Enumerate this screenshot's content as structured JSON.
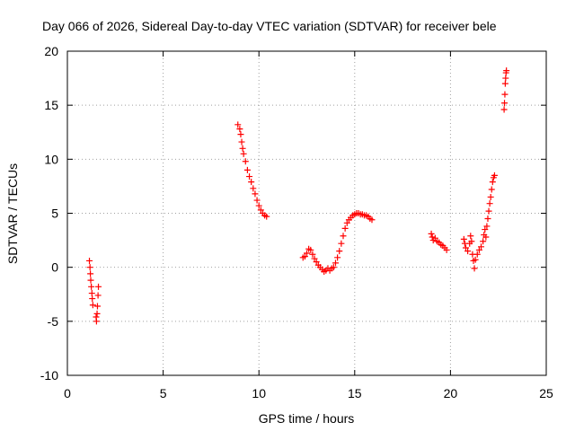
{
  "chart_data": {
    "type": "scatter",
    "title": "Day 066 of 2026, Sidereal Day-to-day VTEC variation (SDTVAR) for receiver bele",
    "xlabel": "GPS time / hours",
    "ylabel": "SDTVAR / TECUs",
    "xlim": [
      0,
      25
    ],
    "ylim": [
      -10,
      20
    ],
    "xticks": [
      0,
      5,
      10,
      15,
      20,
      25
    ],
    "yticks": [
      -10,
      -5,
      0,
      5,
      10,
      15,
      20
    ],
    "xtick_labels": [
      "0",
      "5",
      "10",
      "15",
      "20",
      "25"
    ],
    "ytick_labels": [
      "-10",
      "-5",
      "0",
      "5",
      "10",
      "15",
      "20"
    ],
    "grid": true,
    "marker": "+",
    "series": [
      {
        "name": "SDTVAR",
        "color": "#ff0000",
        "points": [
          [
            1.15,
            0.6
          ],
          [
            1.18,
            0.0
          ],
          [
            1.2,
            -0.6
          ],
          [
            1.22,
            -1.2
          ],
          [
            1.25,
            -1.8
          ],
          [
            1.28,
            -2.4
          ],
          [
            1.3,
            -2.9
          ],
          [
            1.33,
            -3.5
          ],
          [
            1.5,
            -4.6
          ],
          [
            1.52,
            -5.0
          ],
          [
            1.55,
            -4.3
          ],
          [
            1.57,
            -3.6
          ],
          [
            1.6,
            -2.6
          ],
          [
            1.62,
            -1.8
          ],
          [
            8.9,
            13.2
          ],
          [
            9.0,
            12.8
          ],
          [
            9.05,
            12.3
          ],
          [
            9.1,
            11.6
          ],
          [
            9.15,
            11.0
          ],
          [
            9.2,
            10.5
          ],
          [
            9.3,
            9.8
          ],
          [
            9.4,
            9.0
          ],
          [
            9.5,
            8.4
          ],
          [
            9.6,
            7.9
          ],
          [
            9.7,
            7.3
          ],
          [
            9.8,
            6.8
          ],
          [
            9.9,
            6.2
          ],
          [
            10.0,
            5.7
          ],
          [
            10.1,
            5.3
          ],
          [
            10.2,
            5.0
          ],
          [
            10.3,
            4.8
          ],
          [
            10.4,
            4.7
          ],
          [
            12.3,
            0.9
          ],
          [
            12.4,
            1.0
          ],
          [
            12.5,
            1.3
          ],
          [
            12.6,
            1.7
          ],
          [
            12.7,
            1.6
          ],
          [
            12.8,
            1.2
          ],
          [
            12.9,
            0.8
          ],
          [
            13.0,
            0.5
          ],
          [
            13.1,
            0.2
          ],
          [
            13.2,
            0.0
          ],
          [
            13.3,
            -0.2
          ],
          [
            13.4,
            -0.4
          ],
          [
            13.5,
            -0.3
          ],
          [
            13.6,
            -0.1
          ],
          [
            13.7,
            -0.3
          ],
          [
            13.8,
            -0.1
          ],
          [
            13.9,
            0.0
          ],
          [
            14.0,
            0.4
          ],
          [
            14.1,
            0.9
          ],
          [
            14.2,
            1.5
          ],
          [
            14.3,
            2.2
          ],
          [
            14.4,
            2.9
          ],
          [
            14.5,
            3.6
          ],
          [
            14.6,
            4.1
          ],
          [
            14.7,
            4.4
          ],
          [
            14.8,
            4.6
          ],
          [
            14.9,
            4.8
          ],
          [
            15.0,
            4.9
          ],
          [
            15.1,
            5.0
          ],
          [
            15.2,
            5.0
          ],
          [
            15.3,
            4.9
          ],
          [
            15.4,
            4.9
          ],
          [
            15.5,
            4.8
          ],
          [
            15.6,
            4.8
          ],
          [
            15.7,
            4.7
          ],
          [
            15.8,
            4.5
          ],
          [
            15.9,
            4.4
          ],
          [
            19.0,
            3.1
          ],
          [
            19.05,
            2.8
          ],
          [
            19.1,
            2.5
          ],
          [
            19.2,
            2.7
          ],
          [
            19.3,
            2.4
          ],
          [
            19.4,
            2.3
          ],
          [
            19.5,
            2.1
          ],
          [
            19.6,
            2.0
          ],
          [
            19.7,
            1.8
          ],
          [
            19.8,
            1.6
          ],
          [
            20.7,
            2.6
          ],
          [
            20.75,
            2.2
          ],
          [
            20.8,
            1.8
          ],
          [
            20.9,
            1.5
          ],
          [
            21.0,
            2.2
          ],
          [
            21.05,
            2.9
          ],
          [
            21.1,
            2.4
          ],
          [
            21.15,
            1.2
          ],
          [
            21.2,
            0.6
          ],
          [
            21.25,
            -0.1
          ],
          [
            21.3,
            0.7
          ],
          [
            21.4,
            1.2
          ],
          [
            21.5,
            1.6
          ],
          [
            21.6,
            1.9
          ],
          [
            21.7,
            2.4
          ],
          [
            21.75,
            3.0
          ],
          [
            21.8,
            3.5
          ],
          [
            21.85,
            2.8
          ],
          [
            21.9,
            3.8
          ],
          [
            21.95,
            4.5
          ],
          [
            22.0,
            5.2
          ],
          [
            22.05,
            5.9
          ],
          [
            22.1,
            6.5
          ],
          [
            22.15,
            7.2
          ],
          [
            22.2,
            7.9
          ],
          [
            22.25,
            8.3
          ],
          [
            22.3,
            8.5
          ],
          [
            22.8,
            14.6
          ],
          [
            22.82,
            15.2
          ],
          [
            22.84,
            16.0
          ],
          [
            22.86,
            17.0
          ],
          [
            22.88,
            17.5
          ],
          [
            22.9,
            18.0
          ],
          [
            22.92,
            18.2
          ]
        ]
      }
    ]
  }
}
